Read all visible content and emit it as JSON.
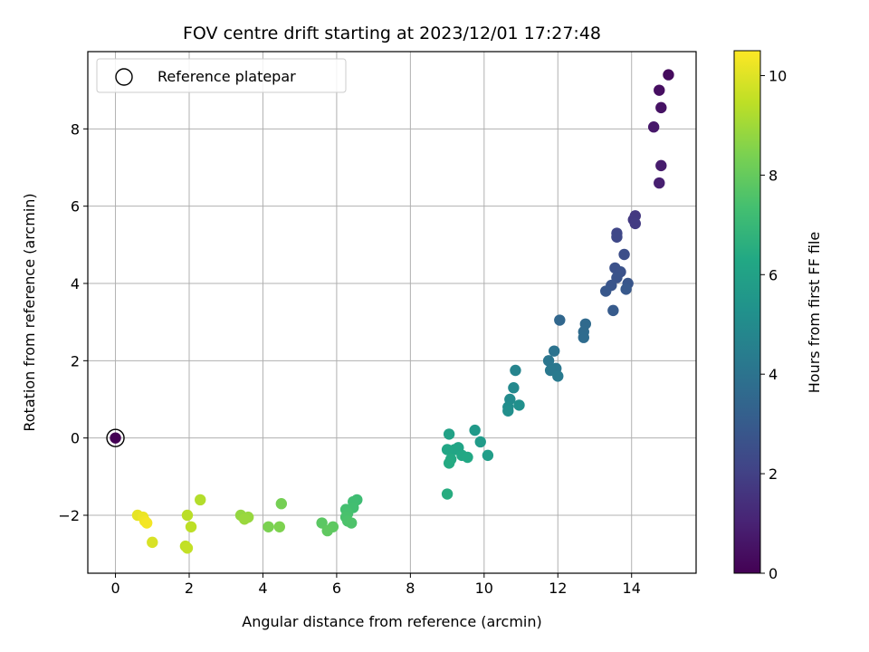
{
  "chart_data": {
    "type": "scatter",
    "title": "FOV centre drift starting at 2023/12/01 17:27:48",
    "xlabel": "Angular distance from reference (arcmin)",
    "ylabel": "Rotation from reference (arcmin)",
    "xlim": [
      -0.75,
      15.75
    ],
    "ylim": [
      -3.5,
      10.0
    ],
    "xticks": [
      0,
      2,
      4,
      6,
      8,
      10,
      12,
      14
    ],
    "xtick_labels": [
      "0",
      "2",
      "4",
      "6",
      "8",
      "10",
      "12",
      "14"
    ],
    "yticks": [
      -2,
      0,
      2,
      4,
      6,
      8
    ],
    "ytick_labels": [
      "−2",
      "0",
      "2",
      "4",
      "6",
      "8"
    ],
    "grid": true,
    "legend": {
      "placement": "top-left",
      "entries": [
        {
          "label": "Reference platepar",
          "marker": "open-circle"
        }
      ]
    },
    "reference_point": {
      "x": 0,
      "y": 0
    },
    "colorbar": {
      "label": "Hours from first FF file",
      "colormap": "viridis",
      "range": [
        0,
        10.5
      ],
      "ticks": [
        0,
        2,
        4,
        6,
        8,
        10
      ],
      "tick_labels": [
        "0",
        "2",
        "4",
        "6",
        "8",
        "10"
      ]
    },
    "points": [
      {
        "x": 0,
        "y": 0,
        "c": 0.0
      },
      {
        "x": 15.0,
        "y": 9.4,
        "c": 0.3
      },
      {
        "x": 14.75,
        "y": 9.0,
        "c": 0.4
      },
      {
        "x": 14.8,
        "y": 8.55,
        "c": 0.5
      },
      {
        "x": 14.6,
        "y": 8.05,
        "c": 0.7
      },
      {
        "x": 14.8,
        "y": 7.05,
        "c": 0.8
      },
      {
        "x": 14.75,
        "y": 6.6,
        "c": 0.9
      },
      {
        "x": 14.1,
        "y": 5.75,
        "c": 1.7
      },
      {
        "x": 14.05,
        "y": 5.65,
        "c": 1.75
      },
      {
        "x": 14.1,
        "y": 5.55,
        "c": 1.8
      },
      {
        "x": 13.6,
        "y": 5.3,
        "c": 2.2
      },
      {
        "x": 13.6,
        "y": 5.2,
        "c": 2.25
      },
      {
        "x": 13.8,
        "y": 4.75,
        "c": 2.5
      },
      {
        "x": 13.55,
        "y": 4.4,
        "c": 2.6
      },
      {
        "x": 13.7,
        "y": 4.3,
        "c": 2.65
      },
      {
        "x": 13.6,
        "y": 4.15,
        "c": 2.7
      },
      {
        "x": 13.45,
        "y": 3.95,
        "c": 2.75
      },
      {
        "x": 13.9,
        "y": 4.0,
        "c": 2.8
      },
      {
        "x": 13.3,
        "y": 3.8,
        "c": 2.85
      },
      {
        "x": 13.85,
        "y": 3.85,
        "c": 2.9
      },
      {
        "x": 13.5,
        "y": 3.3,
        "c": 3.0
      },
      {
        "x": 12.05,
        "y": 3.05,
        "c": 3.5
      },
      {
        "x": 12.75,
        "y": 2.95,
        "c": 3.6
      },
      {
        "x": 12.7,
        "y": 2.75,
        "c": 3.65
      },
      {
        "x": 12.7,
        "y": 2.6,
        "c": 3.7
      },
      {
        "x": 11.9,
        "y": 2.25,
        "c": 4.0
      },
      {
        "x": 11.75,
        "y": 2.0,
        "c": 4.1
      },
      {
        "x": 11.95,
        "y": 1.8,
        "c": 4.15
      },
      {
        "x": 11.8,
        "y": 1.75,
        "c": 4.2
      },
      {
        "x": 12.0,
        "y": 1.6,
        "c": 4.3
      },
      {
        "x": 10.85,
        "y": 1.75,
        "c": 4.7
      },
      {
        "x": 10.8,
        "y": 1.3,
        "c": 4.9
      },
      {
        "x": 10.7,
        "y": 1.0,
        "c": 5.0
      },
      {
        "x": 10.65,
        "y": 0.8,
        "c": 5.1
      },
      {
        "x": 10.65,
        "y": 0.7,
        "c": 5.15
      },
      {
        "x": 10.95,
        "y": 0.85,
        "c": 5.2
      },
      {
        "x": 9.75,
        "y": 0.2,
        "c": 5.6
      },
      {
        "x": 9.9,
        "y": -0.1,
        "c": 5.7
      },
      {
        "x": 10.1,
        "y": -0.45,
        "c": 5.8
      },
      {
        "x": 9.05,
        "y": 0.1,
        "c": 6.0
      },
      {
        "x": 9.3,
        "y": -0.25,
        "c": 6.1
      },
      {
        "x": 9.2,
        "y": -0.3,
        "c": 6.15
      },
      {
        "x": 9.0,
        "y": -0.3,
        "c": 6.2
      },
      {
        "x": 9.4,
        "y": -0.45,
        "c": 6.25
      },
      {
        "x": 9.55,
        "y": -0.5,
        "c": 6.3
      },
      {
        "x": 9.1,
        "y": -0.55,
        "c": 6.35
      },
      {
        "x": 9.05,
        "y": -0.65,
        "c": 6.4
      },
      {
        "x": 9.0,
        "y": -1.45,
        "c": 6.5
      },
      {
        "x": 6.55,
        "y": -1.6,
        "c": 7.2
      },
      {
        "x": 6.45,
        "y": -1.65,
        "c": 7.25
      },
      {
        "x": 6.45,
        "y": -1.8,
        "c": 7.3
      },
      {
        "x": 6.25,
        "y": -1.85,
        "c": 7.35
      },
      {
        "x": 6.3,
        "y": -1.95,
        "c": 7.4
      },
      {
        "x": 6.25,
        "y": -2.05,
        "c": 7.45
      },
      {
        "x": 6.3,
        "y": -2.15,
        "c": 7.5
      },
      {
        "x": 6.4,
        "y": -2.2,
        "c": 7.55
      },
      {
        "x": 5.6,
        "y": -2.2,
        "c": 7.8
      },
      {
        "x": 5.9,
        "y": -2.3,
        "c": 7.85
      },
      {
        "x": 5.75,
        "y": -2.4,
        "c": 7.9
      },
      {
        "x": 4.5,
        "y": -1.7,
        "c": 8.3
      },
      {
        "x": 4.15,
        "y": -2.3,
        "c": 8.4
      },
      {
        "x": 4.45,
        "y": -2.3,
        "c": 8.45
      },
      {
        "x": 3.4,
        "y": -2.0,
        "c": 8.8
      },
      {
        "x": 3.6,
        "y": -2.05,
        "c": 8.85
      },
      {
        "x": 3.5,
        "y": -2.1,
        "c": 8.9
      },
      {
        "x": 2.3,
        "y": -1.6,
        "c": 9.3
      },
      {
        "x": 1.95,
        "y": -2.0,
        "c": 9.4
      },
      {
        "x": 2.05,
        "y": -2.3,
        "c": 9.45
      },
      {
        "x": 1.9,
        "y": -2.8,
        "c": 9.5
      },
      {
        "x": 1.95,
        "y": -2.85,
        "c": 9.55
      },
      {
        "x": 0.6,
        "y": -2.0,
        "c": 10.1
      },
      {
        "x": 0.75,
        "y": -2.05,
        "c": 10.2
      },
      {
        "x": 0.8,
        "y": -2.15,
        "c": 10.3
      },
      {
        "x": 0.85,
        "y": -2.2,
        "c": 10.35
      },
      {
        "x": 1.0,
        "y": -2.7,
        "c": 9.9
      }
    ]
  }
}
